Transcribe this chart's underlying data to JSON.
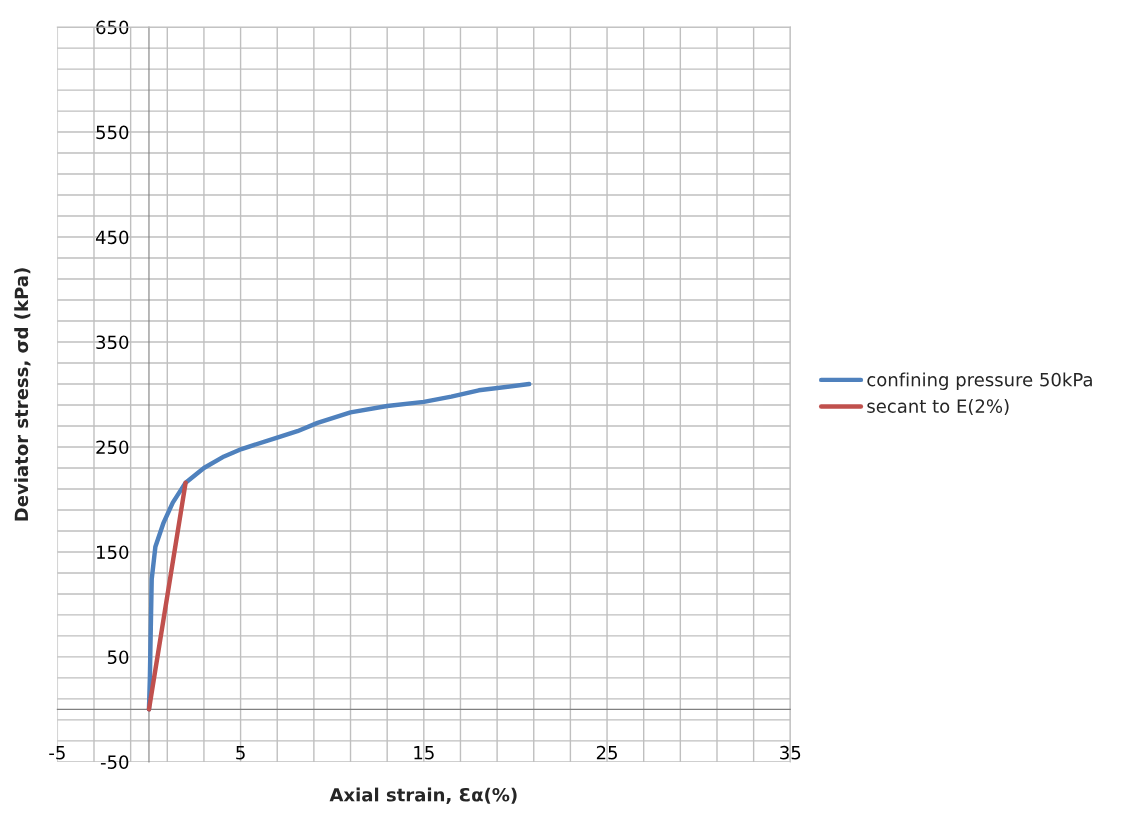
{
  "chart_data": {
    "type": "line",
    "xlabel": "Axial strain, Ɛα(%)",
    "ylabel": "Deviator stress, σd (kPa)",
    "series": [
      {
        "name": "confining pressure 50kPa",
        "color": "#4f81bd",
        "x": [
          0,
          0.05,
          0.08,
          0.15,
          0.35,
          0.8,
          1.3,
          2.0,
          3.0,
          4.1,
          5.05,
          7.0,
          8.1,
          9.2,
          11,
          13,
          15,
          16.5,
          18,
          20.75
        ],
        "values": [
          0,
          30,
          60,
          124,
          155,
          178,
          197,
          216,
          230,
          241,
          248,
          259,
          265,
          273,
          283,
          289,
          293,
          298,
          304,
          310
        ]
      },
      {
        "name": "secant to E(2%)",
        "color": "#c0504d",
        "x": [
          0,
          2.0
        ],
        "values": [
          0,
          216
        ]
      }
    ],
    "xlim": [
      -5,
      35
    ],
    "ylim": [
      -50,
      650
    ],
    "xticks": [
      -5,
      {
        "value": -3,
        "label": null
      },
      {
        "value": -1,
        "label": null
      },
      {
        "value": 1,
        "label": null
      },
      {
        "value": 3,
        "label": null
      },
      5,
      {
        "value": 7,
        "label": null
      },
      {
        "value": 9,
        "label": null
      },
      {
        "value": 11,
        "label": null
      },
      {
        "value": 13,
        "label": null
      },
      15,
      {
        "value": 17,
        "label": null
      },
      {
        "value": 19,
        "label": null
      },
      {
        "value": 21,
        "label": null
      },
      {
        "value": 23,
        "label": null
      },
      25,
      {
        "value": 27,
        "label": null
      },
      {
        "value": 29,
        "label": null
      },
      {
        "value": 31,
        "label": null
      },
      {
        "value": 33,
        "label": null
      },
      35
    ],
    "yticks": [
      -50,
      {
        "value": -30,
        "label": null
      },
      {
        "value": -10,
        "label": null
      },
      {
        "value": 10,
        "label": null
      },
      {
        "value": 30,
        "label": null
      },
      50,
      {
        "value": 70,
        "label": null
      },
      {
        "value": 90,
        "label": null
      },
      {
        "value": 110,
        "label": null
      },
      {
        "value": 130,
        "label": null
      },
      150,
      {
        "value": 170,
        "label": null
      },
      {
        "value": 190,
        "label": null
      },
      {
        "value": 210,
        "label": null
      },
      {
        "value": 230,
        "label": null
      },
      250,
      {
        "value": 270,
        "label": null
      },
      {
        "value": 290,
        "label": null
      },
      {
        "value": 310,
        "label": null
      },
      {
        "value": 330,
        "label": null
      },
      350,
      {
        "value": 370,
        "label": null
      },
      {
        "value": 390,
        "label": null
      },
      {
        "value": 410,
        "label": null
      },
      {
        "value": 430,
        "label": null
      },
      450,
      {
        "value": 470,
        "label": null
      },
      {
        "value": 490,
        "label": null
      },
      {
        "value": 510,
        "label": null
      },
      {
        "value": 530,
        "label": null
      },
      550,
      {
        "value": 570,
        "label": null
      },
      {
        "value": 590,
        "label": null
      },
      {
        "value": 610,
        "label": null
      },
      {
        "value": 630,
        "label": null
      },
      650
    ],
    "grid": true,
    "legend": "right",
    "marker": "none",
    "line_style": "solid"
  }
}
